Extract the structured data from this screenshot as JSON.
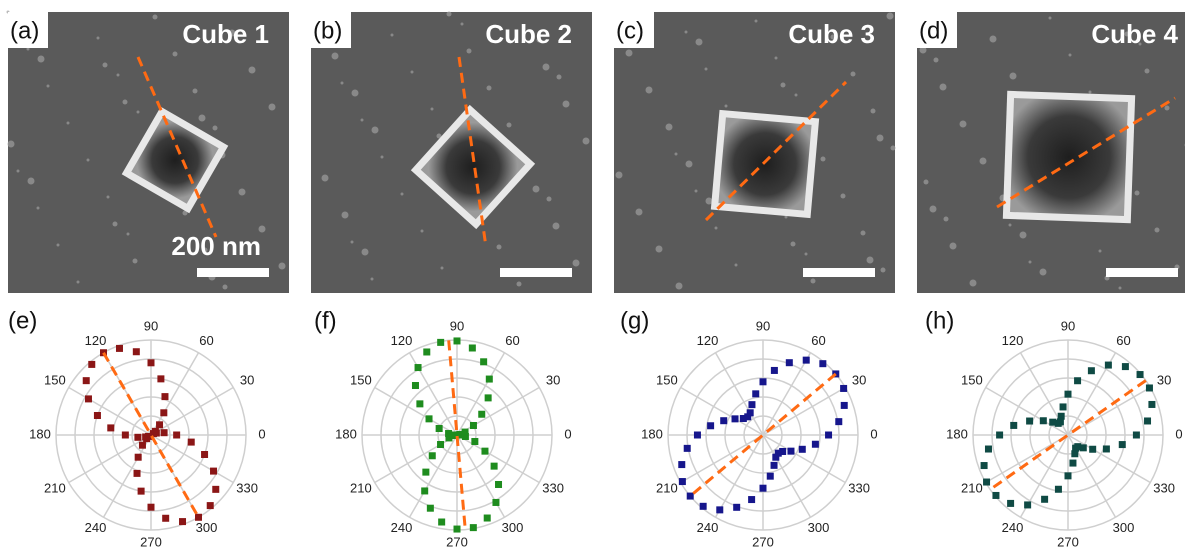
{
  "images": [
    {
      "label": "(a)",
      "title": "Cube 1",
      "scale_bar": "200 nm"
    },
    {
      "label": "(b)",
      "title": "Cube 2"
    },
    {
      "label": "(c)",
      "title": "Cube 3"
    },
    {
      "label": "(d)",
      "title": "Cube 4"
    }
  ],
  "chart_data": [
    {
      "type": "polar",
      "panel_label": "(e)",
      "color": "#8b1616",
      "fit_color": "#ff6a13",
      "fit_angle": 120,
      "grid": true,
      "ylim": [
        0,
        1
      ],
      "xticks": [
        0,
        30,
        60,
        90,
        120,
        150,
        180,
        210,
        240,
        270,
        300,
        330
      ],
      "x": [
        0,
        10,
        20,
        30,
        40,
        50,
        60,
        70,
        80,
        90,
        100,
        110,
        120,
        130,
        140,
        150,
        160,
        170,
        180,
        190,
        200,
        210,
        220,
        230,
        240,
        250,
        260,
        270,
        280,
        290,
        300,
        310,
        320,
        330,
        340,
        350
      ],
      "values": [
        0.27,
        0.14,
        0.06,
        0.03,
        0.06,
        0.14,
        0.27,
        0.43,
        0.6,
        0.76,
        0.89,
        0.97,
        1,
        0.97,
        0.89,
        0.76,
        0.6,
        0.43,
        0.27,
        0.14,
        0.06,
        0.03,
        0.06,
        0.14,
        0.27,
        0.43,
        0.6,
        0.76,
        0.89,
        0.97,
        1,
        0.97,
        0.89,
        0.76,
        0.6,
        0.43
      ]
    },
    {
      "type": "polar",
      "panel_label": "(f)",
      "color": "#1e8c1e",
      "fit_color": "#ff6a13",
      "fit_angle": 95,
      "grid": true,
      "ylim": [
        0,
        1
      ],
      "xticks": [
        0,
        30,
        60,
        90,
        120,
        150,
        180,
        210,
        240,
        270,
        300,
        330
      ],
      "x": [
        0,
        10,
        20,
        30,
        40,
        50,
        60,
        70,
        80,
        90,
        100,
        110,
        120,
        130,
        140,
        150,
        160,
        170,
        180,
        190,
        200,
        210,
        220,
        230,
        240,
        250,
        260,
        270,
        280,
        290,
        300,
        310,
        320,
        330,
        340,
        350
      ],
      "values": [
        0.03,
        0.03,
        0.09,
        0.2,
        0.34,
        0.51,
        0.68,
        0.82,
        0.93,
        0.99,
        0.99,
        0.93,
        0.82,
        0.68,
        0.51,
        0.34,
        0.2,
        0.09,
        0.03,
        0.03,
        0.09,
        0.2,
        0.34,
        0.51,
        0.68,
        0.82,
        0.93,
        0.99,
        0.99,
        0.93,
        0.82,
        0.68,
        0.51,
        0.34,
        0.2,
        0.09
      ]
    },
    {
      "type": "polar",
      "panel_label": "(g)",
      "color": "#16168c",
      "fit_color": "#ff6a13",
      "fit_angle": 40,
      "grid": true,
      "ylim": [
        0,
        1
      ],
      "xticks": [
        0,
        30,
        60,
        90,
        120,
        150,
        180,
        210,
        240,
        270,
        300,
        330
      ],
      "x": [
        0,
        10,
        20,
        30,
        40,
        50,
        60,
        70,
        80,
        90,
        100,
        110,
        120,
        130,
        140,
        150,
        160,
        170,
        180,
        190,
        200,
        210,
        220,
        230,
        240,
        250,
        260,
        270,
        280,
        290,
        300,
        310,
        320,
        330,
        340,
        350
      ],
      "values": [
        0.69,
        0.81,
        0.91,
        0.98,
        1,
        0.98,
        0.91,
        0.81,
        0.69,
        0.56,
        0.44,
        0.34,
        0.27,
        0.25,
        0.27,
        0.34,
        0.44,
        0.56,
        0.69,
        0.81,
        0.91,
        0.98,
        1,
        0.98,
        0.91,
        0.81,
        0.69,
        0.56,
        0.44,
        0.34,
        0.27,
        0.25,
        0.27,
        0.34,
        0.44,
        0.56
      ]
    },
    {
      "type": "polar",
      "panel_label": "(h)",
      "color": "#0f4a44",
      "fit_color": "#ff6a13",
      "fit_angle": 35,
      "grid": true,
      "ylim": [
        0,
        1
      ],
      "xticks": [
        0,
        30,
        60,
        90,
        120,
        150,
        180,
        210,
        240,
        270,
        300,
        330
      ],
      "x": [
        0,
        10,
        20,
        30,
        40,
        50,
        60,
        70,
        80,
        90,
        100,
        110,
        120,
        130,
        140,
        150,
        160,
        170,
        180,
        190,
        200,
        210,
        220,
        230,
        240,
        250,
        260,
        270,
        280,
        290,
        300,
        310,
        320,
        330,
        340,
        350
      ],
      "values": [
        0.72,
        0.85,
        0.94,
        0.99,
        0.99,
        0.94,
        0.85,
        0.72,
        0.58,
        0.43,
        0.3,
        0.21,
        0.16,
        0.16,
        0.21,
        0.3,
        0.43,
        0.58,
        0.72,
        0.85,
        0.94,
        0.99,
        0.99,
        0.94,
        0.85,
        0.72,
        0.58,
        0.43,
        0.3,
        0.21,
        0.16,
        0.16,
        0.21,
        0.3,
        0.43,
        0.58
      ]
    }
  ]
}
